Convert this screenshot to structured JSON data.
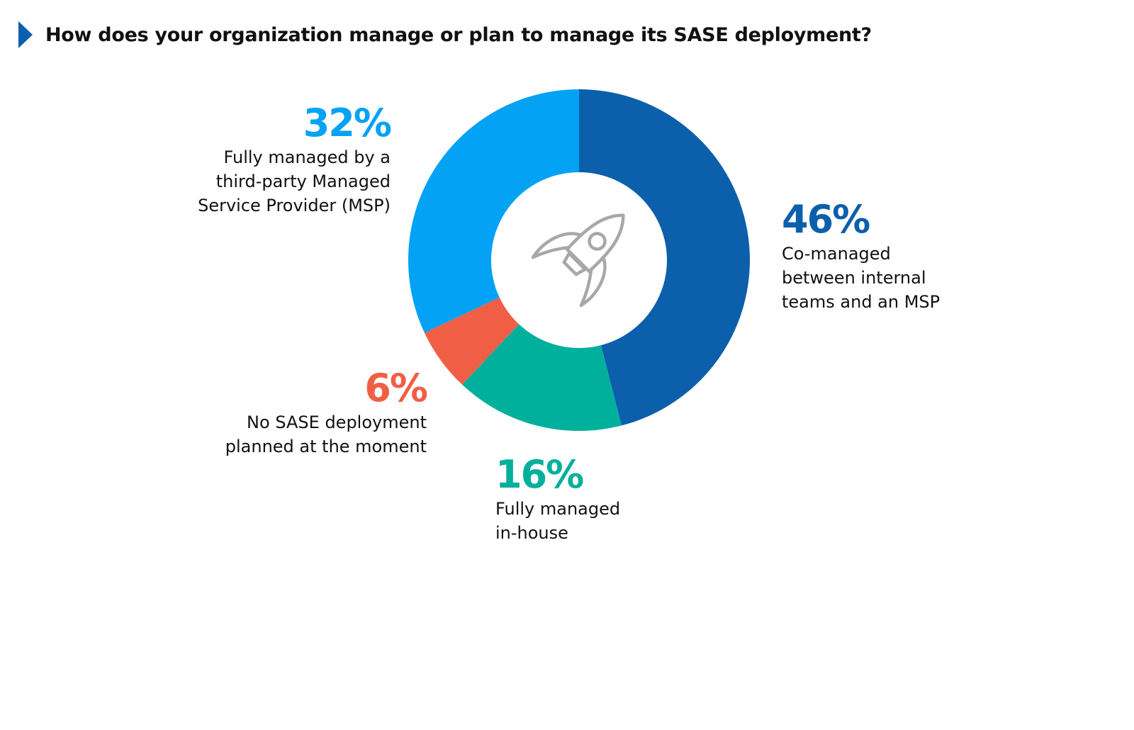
{
  "title": "How does your organization manage or plan to manage its SASE deployment?",
  "icons": {
    "title_marker": "chevron-right-icon",
    "center": "rocket-icon"
  },
  "colors": {
    "accent": "#0b5fb0",
    "co_managed": "#0b5fab",
    "in_house": "#00b09c",
    "no_deployment": "#f05f45",
    "msp": "#03a2f5",
    "icon": "#a8a8a8"
  },
  "chart_data": {
    "type": "pie",
    "title": "How does your organization manage or plan to manage its SASE deployment?",
    "slices": [
      {
        "label": "Co-managed\nbetween internal\nteams and an MSP",
        "value": 46,
        "display": "46%",
        "color": "#0b5fab"
      },
      {
        "label": "Fully managed\nin-house",
        "value": 16,
        "display": "16%",
        "color": "#00b09c"
      },
      {
        "label": "No SASE deployment\nplanned at the moment",
        "value": 6,
        "display": "6%",
        "color": "#f05f45"
      },
      {
        "label": "Fully managed by a\nthird-party Managed\nService Provider (MSP)",
        "value": 32,
        "display": "32%",
        "color": "#03a2f5"
      }
    ]
  }
}
